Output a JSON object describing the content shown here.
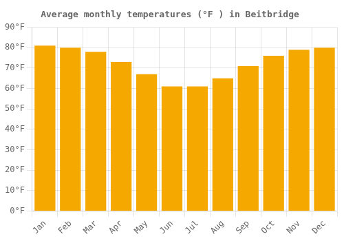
{
  "chart_data": {
    "type": "bar",
    "title": "Average monthly temperatures (°F ) in Beitbridge",
    "categories": [
      "Jan",
      "Feb",
      "Mar",
      "Apr",
      "May",
      "Jun",
      "Jul",
      "Aug",
      "Sep",
      "Oct",
      "Nov",
      "Dec"
    ],
    "values": [
      81,
      80,
      78,
      73,
      67,
      61,
      61,
      65,
      71,
      76,
      79,
      80
    ],
    "color": "#F5A800",
    "ylim": [
      0,
      90
    ],
    "yticks": [
      {
        "value": 0,
        "label": "0°F"
      },
      {
        "value": 10,
        "label": "10°F"
      },
      {
        "value": 20,
        "label": "20°F"
      },
      {
        "value": 30,
        "label": "30°F"
      },
      {
        "value": 40,
        "label": "40°F"
      },
      {
        "value": 50,
        "label": "50°F"
      },
      {
        "value": 60,
        "label": "60°F"
      },
      {
        "value": 70,
        "label": "70°F"
      },
      {
        "value": 80,
        "label": "80°F"
      },
      {
        "value": 90,
        "label": "90°F"
      }
    ],
    "grid": true
  }
}
